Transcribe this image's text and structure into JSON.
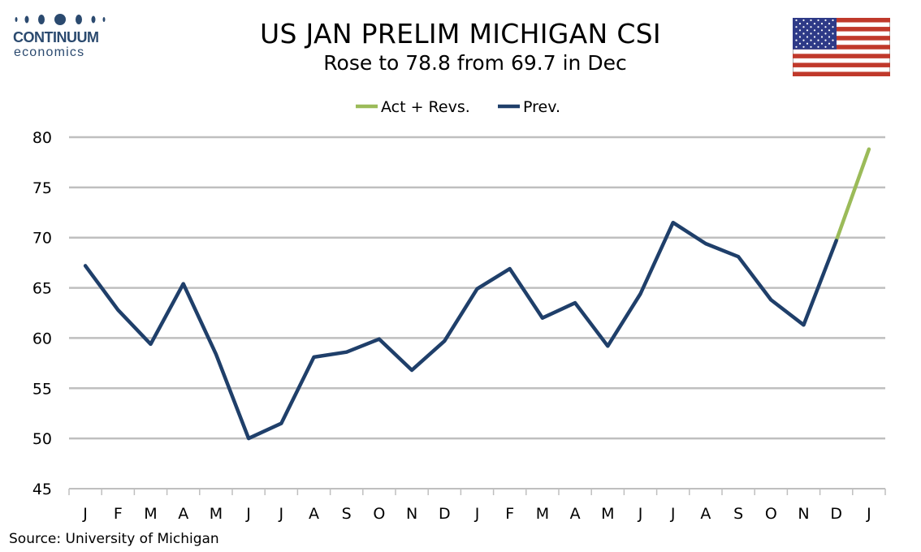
{
  "logo": {
    "word": "CONTINUUM",
    "sub": "economics",
    "color": "#2b4a6f"
  },
  "header": {
    "title": "US JAN PRELIM MICHIGAN CSI",
    "subtitle": "Rose to 78.8 from 69.7 in Dec"
  },
  "flag": {
    "icon": "us-flag-icon"
  },
  "source": "Source: University of Michigan",
  "chart_data": {
    "type": "line",
    "title": "US JAN PRELIM MICHIGAN CSI",
    "subtitle": "Rose to 78.8 from 69.7 in Dec",
    "categories": [
      "J",
      "F",
      "M",
      "A",
      "M",
      "J",
      "J",
      "A",
      "S",
      "O",
      "N",
      "D",
      "J",
      "F",
      "M",
      "A",
      "M",
      "J",
      "J",
      "A",
      "S",
      "O",
      "N",
      "D",
      "J"
    ],
    "series": [
      {
        "name": "Act + Revs.",
        "color": "#9bbb59",
        "values": [
          null,
          null,
          null,
          null,
          null,
          null,
          null,
          null,
          null,
          null,
          null,
          null,
          null,
          null,
          null,
          null,
          null,
          null,
          null,
          null,
          null,
          null,
          null,
          69.7,
          78.8
        ]
      },
      {
        "name": "Prev.",
        "color": "#1f3f6a",
        "values": [
          67.2,
          62.8,
          59.4,
          65.4,
          58.4,
          50.0,
          51.5,
          58.1,
          58.6,
          59.9,
          56.8,
          59.7,
          64.9,
          66.9,
          62.0,
          63.5,
          59.2,
          64.4,
          71.5,
          69.4,
          68.1,
          63.8,
          61.3,
          69.7,
          null
        ]
      }
    ],
    "xlabel": "",
    "ylabel": "",
    "ylim": [
      45,
      80
    ],
    "yticks": [
      45,
      50,
      55,
      60,
      65,
      70,
      75,
      80
    ],
    "grid": true,
    "legend_position": "top-center"
  }
}
